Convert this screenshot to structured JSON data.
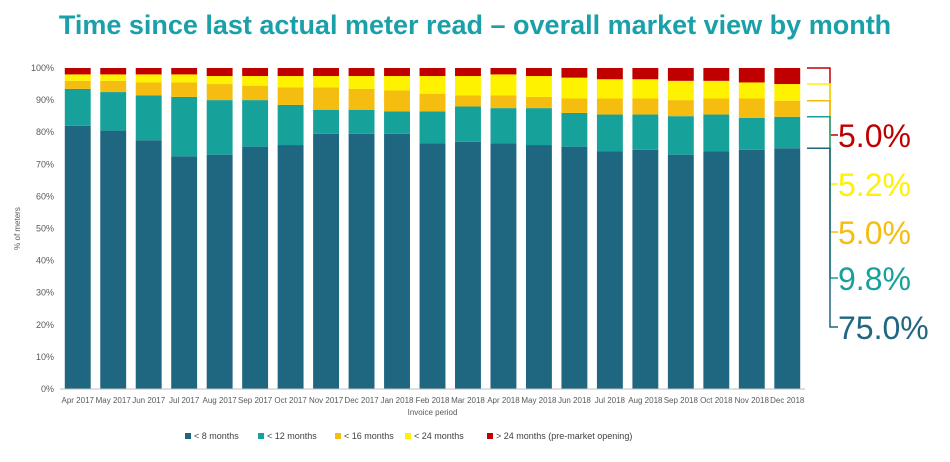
{
  "chart_data": {
    "type": "bar",
    "stacked": true,
    "title": "Time since last actual meter read – overall market view by month",
    "xlabel": "Invoice period",
    "ylabel": "% of meters",
    "ylim": [
      0,
      100
    ],
    "y_ticks": [
      "0%",
      "10%",
      "20%",
      "30%",
      "40%",
      "50%",
      "60%",
      "70%",
      "80%",
      "90%",
      "100%"
    ],
    "grid": false,
    "legend_position": "bottom",
    "categories": [
      "Apr 2017",
      "May 2017",
      "Jun 2017",
      "Jul 2017",
      "Aug 2017",
      "Sep 2017",
      "Oct 2017",
      "Nov 2017",
      "Dec 2017",
      "Jan 2018",
      "Feb 2018",
      "Mar 2018",
      "Apr 2018",
      "May 2018",
      "Jun 2018",
      "Jul 2018",
      "Aug 2018",
      "Sep 2018",
      "Oct 2018",
      "Nov 2018",
      "Dec 2018"
    ],
    "series": [
      {
        "name": "< 8 months",
        "color": "#1f6680",
        "values": [
          82,
          80.5,
          77.5,
          72.5,
          73,
          75.5,
          76,
          79.5,
          79.5,
          79.5,
          76.5,
          77,
          76.5,
          76,
          75.5,
          74,
          74.5,
          73,
          74,
          74.5,
          75
        ]
      },
      {
        "name": "< 12 months",
        "color": "#16a19a",
        "values": [
          11.5,
          12,
          14,
          18.5,
          17,
          14.5,
          12.5,
          7.5,
          7.5,
          7,
          10,
          11,
          11,
          11.5,
          10.5,
          11.5,
          11,
          12,
          11.5,
          10,
          9.8
        ]
      },
      {
        "name": "< 16 months",
        "color": "#f5bd0f",
        "values": [
          2.5,
          3.5,
          4,
          4.5,
          5,
          4.5,
          5.5,
          7,
          6.5,
          6.5,
          5.5,
          3.5,
          4,
          3.5,
          4.5,
          5,
          5,
          5,
          5,
          6,
          5
        ]
      },
      {
        "name": "< 24 months",
        "color": "#fff200",
        "values": [
          2,
          2,
          2.5,
          2.5,
          2.5,
          3,
          3.5,
          3.5,
          4,
          4.5,
          5.5,
          6,
          6.5,
          6.5,
          6.5,
          6,
          6,
          6,
          5.5,
          5,
          5.2
        ]
      },
      {
        "name": "> 24 months (pre-market opening)",
        "color": "#c00000",
        "values": [
          2,
          2,
          2,
          2,
          2.5,
          2.5,
          2.5,
          2.5,
          2.5,
          2.5,
          2.5,
          2.5,
          2,
          2.5,
          3,
          3.5,
          3.5,
          4,
          4,
          4.5,
          5
        ]
      }
    ]
  },
  "side_labels": [
    {
      "text": "5.0%",
      "color": "#c00000"
    },
    {
      "text": "5.2%",
      "color": "#fff200"
    },
    {
      "text": "5.0%",
      "color": "#f5bd0f"
    },
    {
      "text": "9.8%",
      "color": "#16a19a"
    },
    {
      "text": "75.0%",
      "color": "#1f6680"
    }
  ]
}
